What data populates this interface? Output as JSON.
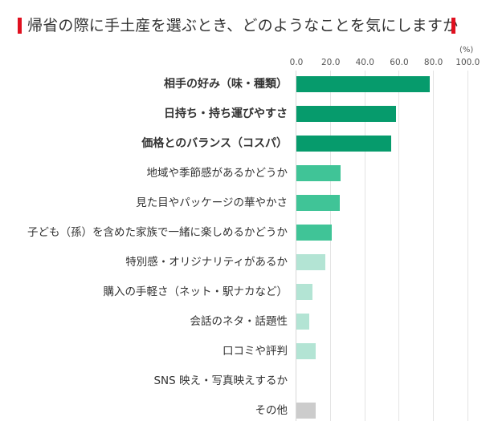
{
  "title": "帰省の際に手土産を選ぶとき、どのようなことを気にしますか",
  "accent_color": "#e0101f",
  "axis": {
    "unit": "(%)",
    "ticks": [
      "0.0",
      "20.0",
      "40.0",
      "60.0",
      "80.0",
      "100.0"
    ]
  },
  "chart_data": {
    "type": "bar",
    "orientation": "horizontal",
    "title": "帰省の際に手土産を選ぶとき、どのようなことを気にしますか",
    "xlabel": "(%)",
    "ylabel": "",
    "xlim": [
      0,
      100
    ],
    "grid": true,
    "categories": [
      "相手の好み（味・種類）",
      "日持ち・持ち運びやすさ",
      "価格とのバランス（コスパ）",
      "地域や季節感があるかどうか",
      "見た目やパッケージの華やかさ",
      "子ども（孫）を含めた家族で一緒に楽しめるかどうか",
      "特別感・オリジナリティがあるか",
      "購入の手軽さ（ネット・駅ナカなど）",
      "会話のネタ・話題性",
      "口コミや評判",
      "SNS 映え・写真映えするか",
      "その他"
    ],
    "values": [
      77.8,
      57.9,
      55.5,
      25.8,
      25.3,
      20.5,
      16.7,
      9.5,
      7.5,
      11.1,
      0.0,
      11.1
    ],
    "colors": [
      "#069b6c",
      "#069b6c",
      "#069b6c",
      "#40c497",
      "#40c497",
      "#40c497",
      "#b3e4d4",
      "#b3e4d4",
      "#b3e4d4",
      "#b3e4d4",
      "#b3e4d4",
      "#cccccc"
    ],
    "bold": [
      true,
      true,
      true,
      false,
      false,
      false,
      false,
      false,
      false,
      false,
      false,
      false
    ]
  }
}
